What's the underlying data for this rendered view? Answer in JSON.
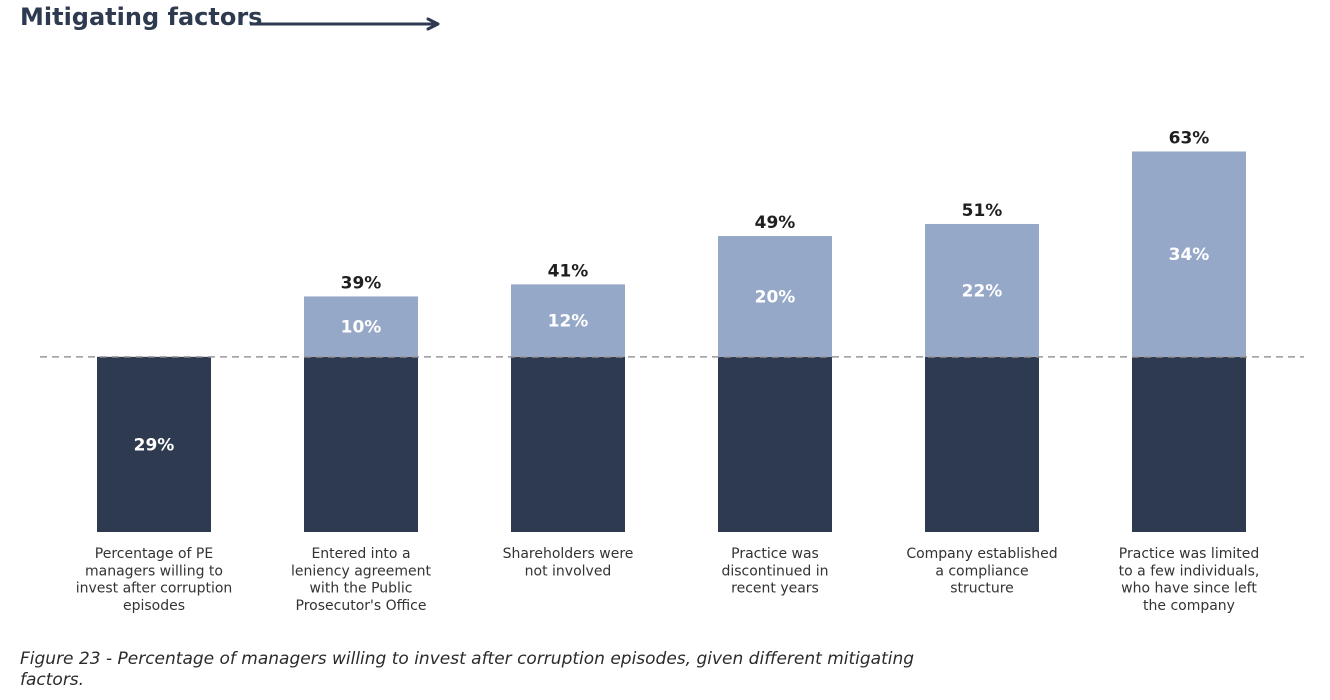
{
  "header": {
    "title": "Mitigating factors"
  },
  "caption": "Figure 23 - Percentage of managers willing to invest after corruption episodes, given different mitigating factors.",
  "colors": {
    "base": "#2e3a50",
    "increment": "#96a8c8",
    "baseline": "#9a9a9a",
    "title": "#2e3a50"
  },
  "chart_data": {
    "type": "bar",
    "stacked": true,
    "categories": [
      [
        "Percentage of PE",
        "managers willing to",
        "invest after corruption",
        "episodes"
      ],
      [
        "Entered into a",
        "leniency agreement",
        "with the Public",
        "Prosecutor's Office"
      ],
      [
        "Shareholders were",
        "not involved"
      ],
      [
        "Practice was",
        "discontinued in",
        "recent years"
      ],
      [
        "Company established",
        "a compliance",
        "structure"
      ],
      [
        "Practice was limited",
        "to a few individuals,",
        "who have since left",
        "the company"
      ]
    ],
    "base_value": 29,
    "series": [
      {
        "values": [
          29,
          29,
          29,
          29,
          29,
          29
        ]
      },
      {
        "values": [
          0,
          10,
          12,
          20,
          22,
          34
        ]
      }
    ],
    "base_labels": [
      "29%",
      "",
      "",
      "",
      "",
      ""
    ],
    "increment_labels": [
      "",
      "10%",
      "12%",
      "20%",
      "22%",
      "34%"
    ],
    "total_labels": [
      "",
      "39%",
      "41%",
      "49%",
      "51%",
      "63%"
    ],
    "reference_line": 29,
    "ylim": [
      0,
      70
    ],
    "grid": false,
    "legend": "none"
  }
}
